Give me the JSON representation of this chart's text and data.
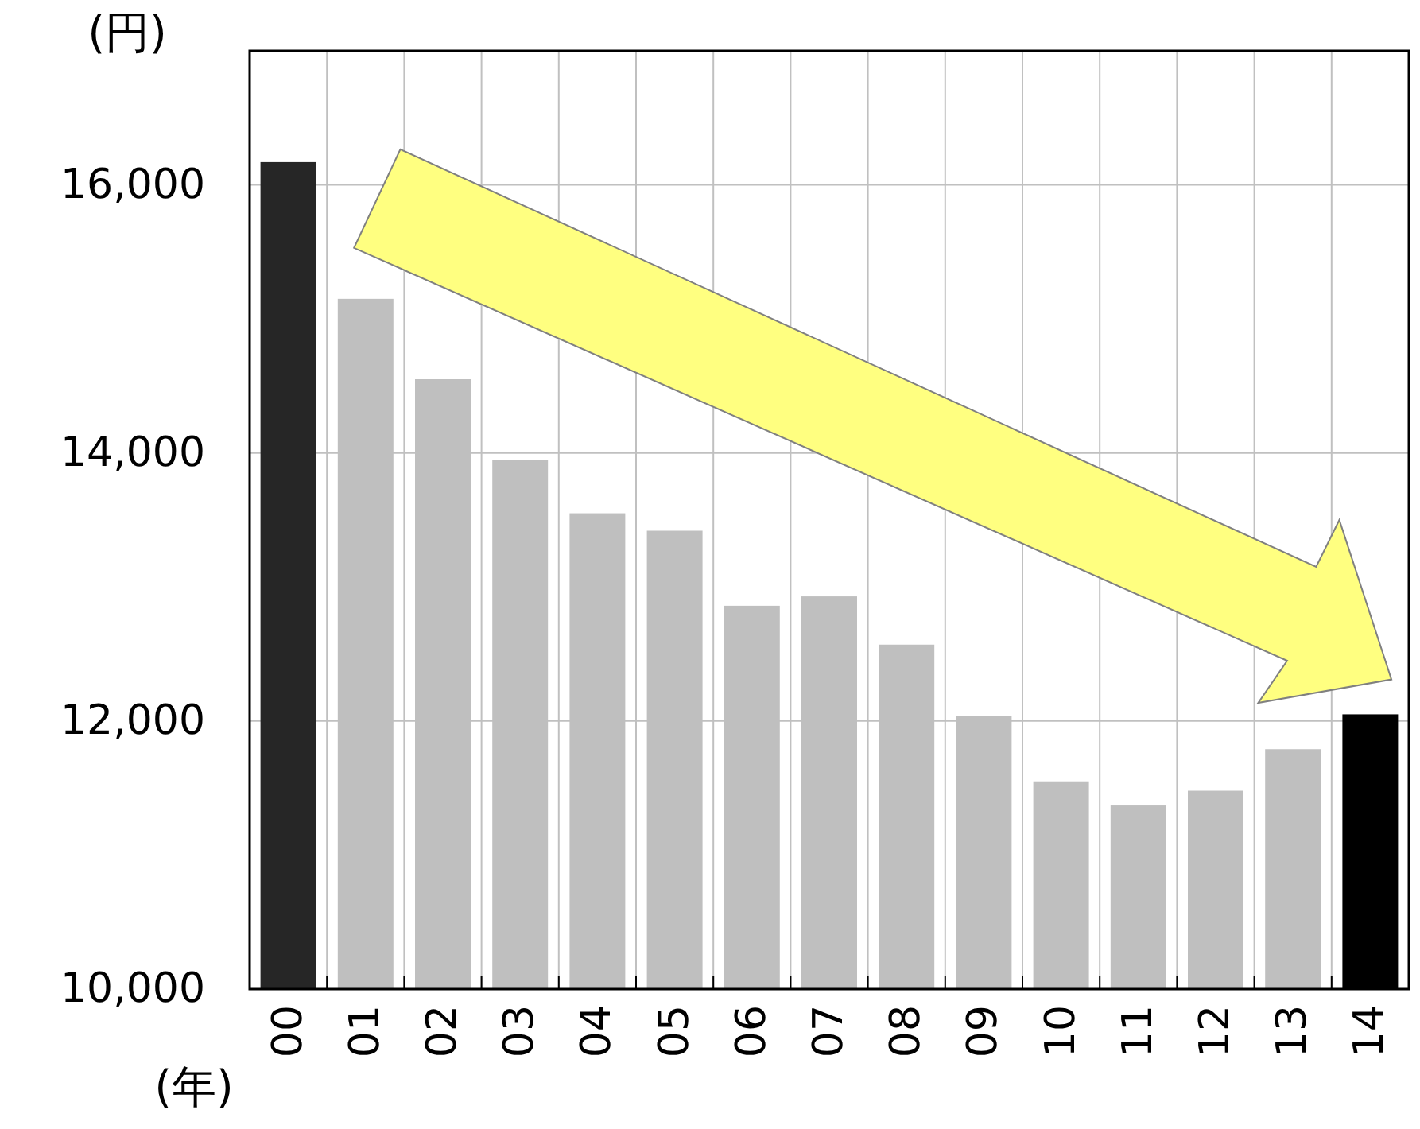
{
  "chart_data": {
    "type": "bar",
    "ylabel": "(円)",
    "xlabel": "(年)",
    "categories": [
      "00",
      "01",
      "02",
      "03",
      "04",
      "05",
      "06",
      "07",
      "08",
      "09",
      "10",
      "11",
      "12",
      "13",
      "14"
    ],
    "values": [
      16170,
      15150,
      14550,
      13950,
      13550,
      13420,
      12860,
      12930,
      12570,
      12040,
      11550,
      11370,
      11480,
      11790,
      12050
    ],
    "colors": [
      "#262626",
      "#bfbfbf",
      "#bfbfbf",
      "#bfbfbf",
      "#bfbfbf",
      "#bfbfbf",
      "#bfbfbf",
      "#bfbfbf",
      "#bfbfbf",
      "#bfbfbf",
      "#bfbfbf",
      "#bfbfbf",
      "#bfbfbf",
      "#bfbfbf",
      "#000000"
    ],
    "ylim": [
      10000,
      17000
    ],
    "yticks": [
      {
        "value": 10000,
        "label": "10,000"
      },
      {
        "value": 12000,
        "label": "12,000"
      },
      {
        "value": 14000,
        "label": "14,000"
      },
      {
        "value": 16000,
        "label": "16,000"
      }
    ],
    "grid": true
  }
}
